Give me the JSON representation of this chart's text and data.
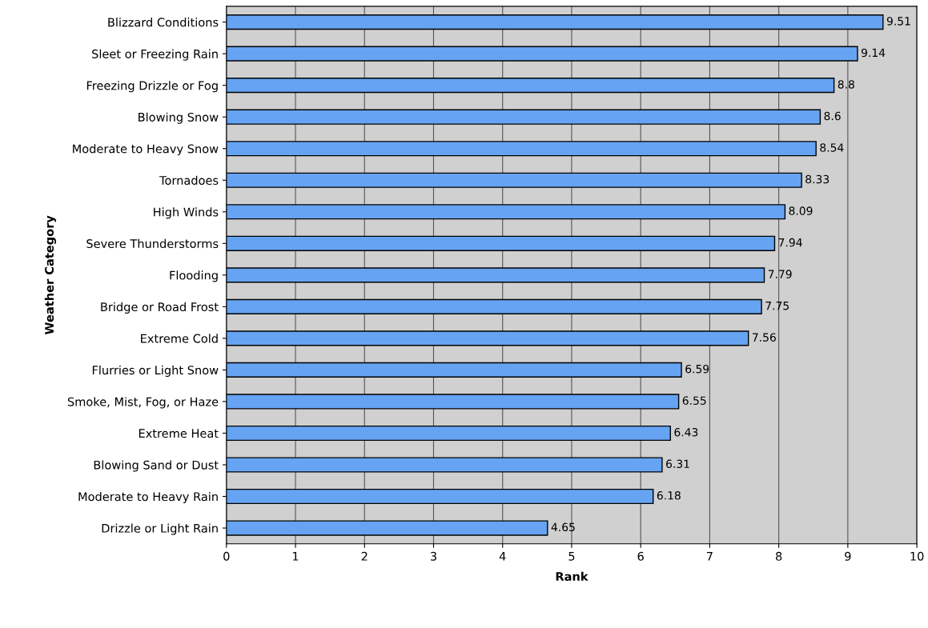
{
  "chart_data": {
    "type": "bar",
    "orientation": "horizontal",
    "xlabel": "Rank",
    "ylabel": "Weather Category",
    "categories": [
      "Blizzard Conditions",
      "Sleet or Freezing Rain",
      "Freezing Drizzle or Fog",
      "Blowing Snow",
      "Moderate to Heavy Snow",
      "Tornadoes",
      "High Winds",
      "Severe Thunderstorms",
      "Flooding",
      "Bridge or Road Frost",
      "Extreme Cold",
      "Flurries or Light Snow",
      "Smoke, Mist, Fog, or Haze",
      "Extreme Heat",
      "Blowing Sand or Dust",
      "Moderate to Heavy Rain",
      "Drizzle or Light Rain"
    ],
    "values": [
      9.51,
      9.14,
      8.8,
      8.6,
      8.54,
      8.33,
      8.09,
      7.94,
      7.79,
      7.75,
      7.56,
      6.59,
      6.55,
      6.43,
      6.31,
      6.18,
      4.65
    ],
    "color": "#66a3f2",
    "xlim": [
      0,
      10
    ],
    "xticks": [
      0,
      1,
      2,
      3,
      4,
      5,
      6,
      7,
      8,
      9,
      10
    ],
    "grid": "x",
    "data_labels": true
  }
}
